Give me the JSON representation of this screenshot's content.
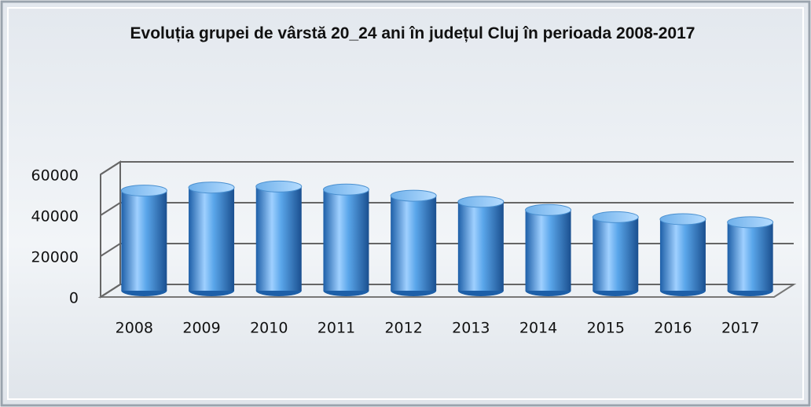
{
  "chart_data": {
    "type": "bar",
    "title": "Evoluția grupei de vârstă 20_24 ani în județul Cluj în perioada 2008-2017",
    "categories": [
      "2008",
      "2009",
      "2010",
      "2011",
      "2012",
      "2013",
      "2014",
      "2015",
      "2016",
      "2017"
    ],
    "values": [
      49000,
      50500,
      51000,
      49500,
      46500,
      43500,
      39500,
      36000,
      35000,
      33500
    ],
    "color": "#3d8fd6",
    "ylim": [
      0,
      60000
    ],
    "yticks": [
      0,
      20000,
      40000,
      60000
    ],
    "grid": true
  }
}
